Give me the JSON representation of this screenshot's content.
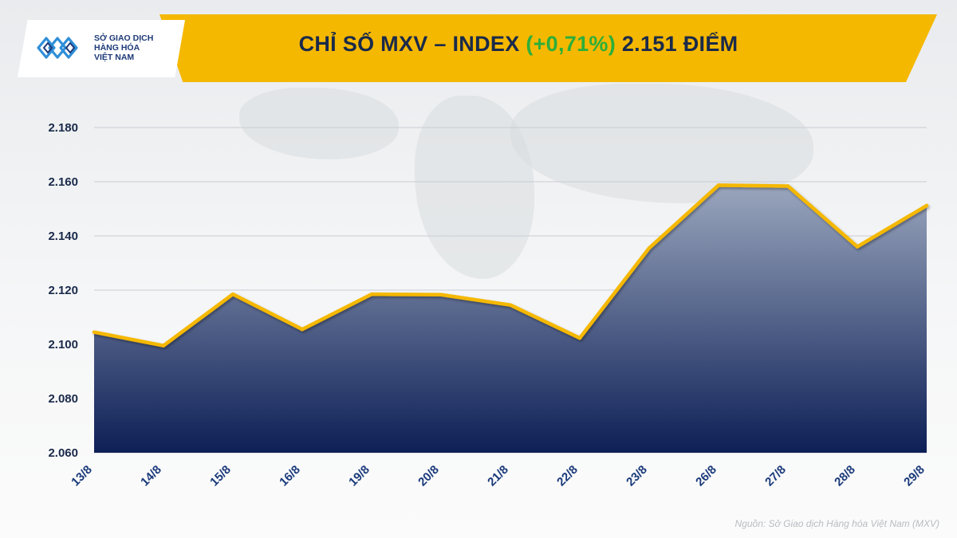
{
  "header": {
    "logo_line1": "SỞ GIAO DỊCH",
    "logo_line2": "HÀNG HÓA",
    "logo_line3": "VIỆT NAM",
    "title_prefix": "CHỈ SỐ MXV – INDEX ",
    "title_change": "(+0,71%)",
    "title_suffix": " 2.151 ĐIỂM"
  },
  "source": "Nguồn: Sở Giao dịch Hàng hóa Việt Nam (MXV)",
  "colors": {
    "accent": "#f5b800",
    "line": "#f5b800",
    "area_top": "#9aa6bd",
    "area_bottom": "#0d1f56",
    "positive": "#2eae3a"
  },
  "chart_data": {
    "type": "area",
    "categories": [
      "13/8",
      "14/8",
      "15/8",
      "16/8",
      "19/8",
      "20/8",
      "21/8",
      "22/8",
      "23/8",
      "26/8",
      "27/8",
      "28/8",
      "29/8"
    ],
    "series": [
      {
        "values": [
          2104.5,
          2099.5,
          2118.5,
          2105.5,
          2118.5,
          2118.3,
          2114.5,
          2102.3,
          2135.5,
          2158.7,
          2158.4,
          2136.0,
          2151.2
        ]
      }
    ],
    "ylim": [
      2060,
      2180
    ],
    "yticks": [
      2060,
      2080,
      2100,
      2120,
      2140,
      2160,
      2180
    ],
    "ytick_labels": [
      "2.060",
      "2.080",
      "2.100",
      "2.120",
      "2.140",
      "2.160",
      "2.180"
    ],
    "grid": true,
    "xlabel": "",
    "ylabel": ""
  }
}
